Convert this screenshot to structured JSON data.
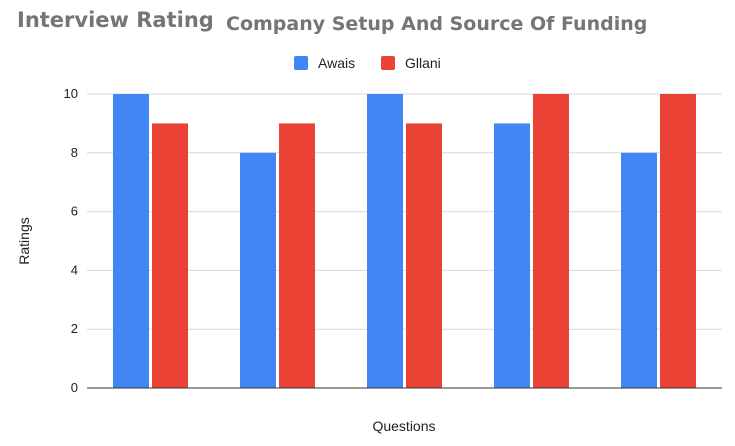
{
  "header": {
    "left_title": "Interview Rating",
    "right_title": "Company Setup And Source Of Funding"
  },
  "chart_data": {
    "type": "bar",
    "categories": [
      "",
      "",
      "",
      "",
      ""
    ],
    "series": [
      {
        "name": "Awais",
        "values": [
          10,
          8,
          10,
          9,
          8
        ],
        "color": "#4285f4"
      },
      {
        "name": "Gllani",
        "values": [
          9,
          9,
          9,
          10,
          10
        ],
        "color": "#ea4335"
      }
    ],
    "xlabel": "Questions",
    "ylabel": "Ratings",
    "ylim": [
      0,
      10
    ],
    "yticks": [
      0,
      2,
      4,
      6,
      8,
      10
    ],
    "grid": true,
    "legend": "top-center"
  }
}
